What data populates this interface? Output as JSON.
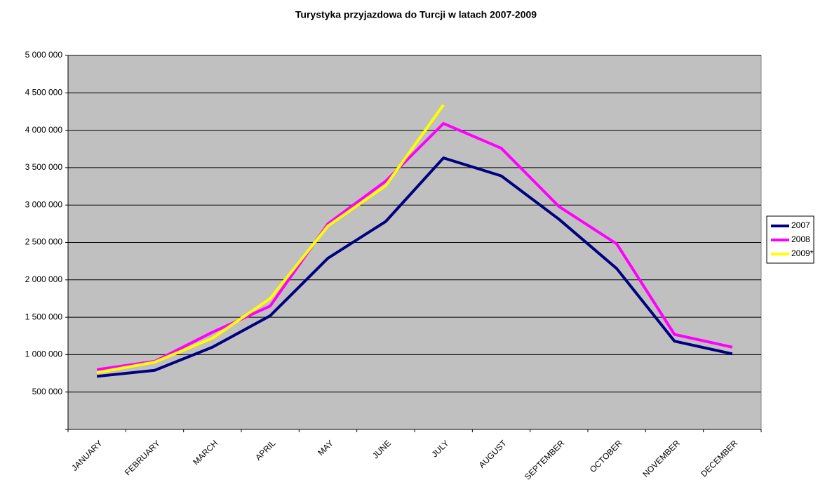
{
  "chart_data": {
    "type": "line",
    "title": "Turystyka przyjazdowa do Turcji w latach 2007-2009",
    "categories": [
      "JANUARY",
      "FEBRUARY",
      "MARCH",
      "APRIL",
      "MAY",
      "JUNE",
      "JULY",
      "AUGUST",
      "SEPTEMBER",
      "OCTOBER",
      "NOVEMBER",
      "DECEMBER"
    ],
    "series": [
      {
        "name": "2007",
        "color": "#000080",
        "values": [
          710000,
          790000,
          1100000,
          1520000,
          2290000,
          2780000,
          3630000,
          3390000,
          2810000,
          2150000,
          1180000,
          1010000
        ]
      },
      {
        "name": "2008",
        "color": "#ff00ff",
        "values": [
          800000,
          910000,
          1300000,
          1650000,
          2750000,
          3320000,
          4090000,
          3760000,
          2980000,
          2480000,
          1270000,
          1100000
        ]
      },
      {
        "name": "2009*",
        "color": "#ffff00",
        "values": [
          760000,
          900000,
          1220000,
          1750000,
          2720000,
          3260000,
          4340000,
          null,
          null,
          null,
          null,
          null
        ]
      }
    ],
    "ylim": [
      0,
      5000000
    ],
    "yticks": [
      {
        "value": 500000,
        "label": "500 000"
      },
      {
        "value": 1000000,
        "label": "1 000 000"
      },
      {
        "value": 1500000,
        "label": "1 500 000"
      },
      {
        "value": 2000000,
        "label": "2 000 000"
      },
      {
        "value": 2500000,
        "label": "2 500 000"
      },
      {
        "value": 3000000,
        "label": "3 000 000"
      },
      {
        "value": 3500000,
        "label": "3 500 000"
      },
      {
        "value": 4000000,
        "label": "4 000 000"
      },
      {
        "value": 4500000,
        "label": "4 500 000"
      },
      {
        "value": 5000000,
        "label": "5 000 000"
      }
    ],
    "grid": true,
    "legend": "right",
    "plot_background": "#c0c0c0"
  }
}
